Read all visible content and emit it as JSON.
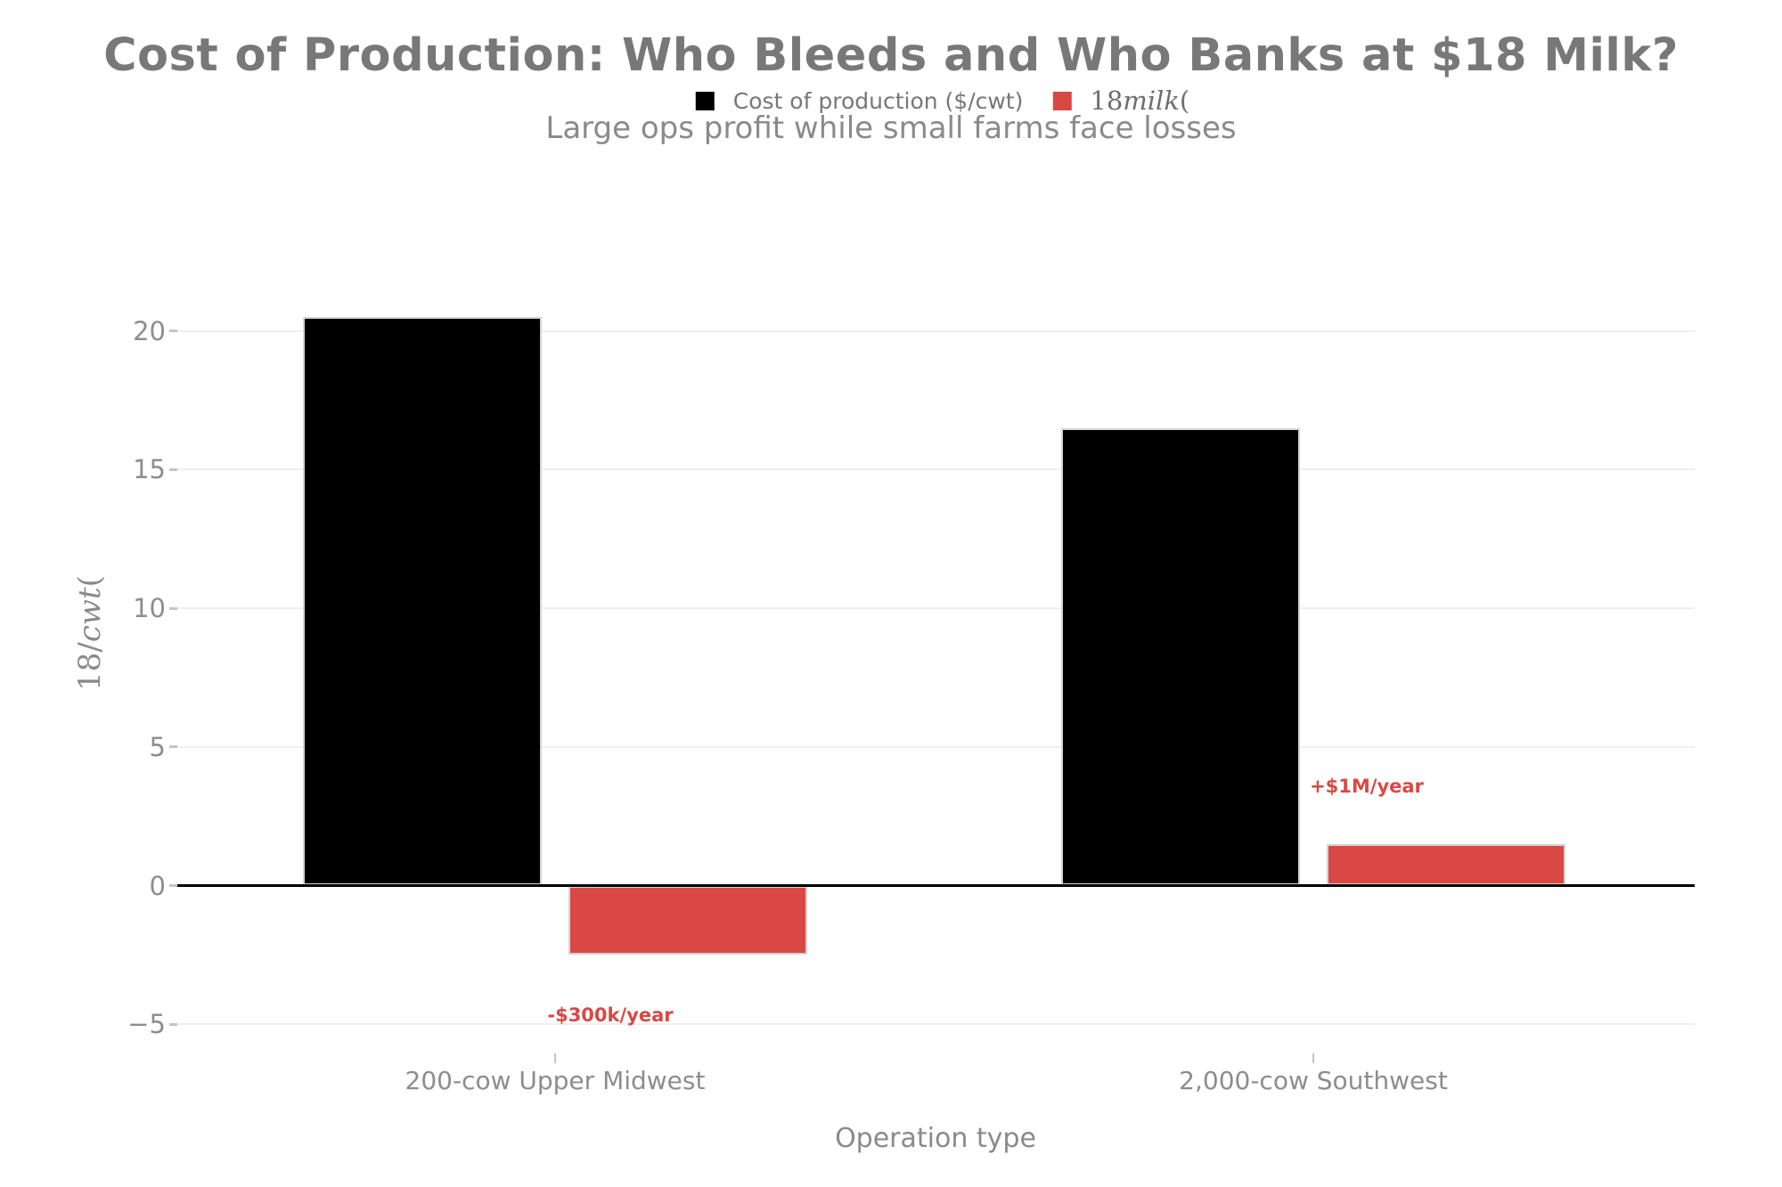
{
  "title": "Cost of Production: Who Bleeds and Who Banks at $18 Milk?",
  "subtitle": "Large ops profit while small farms face losses",
  "colors": {
    "cost_bar": "#000000",
    "milk_bar": "#d94845",
    "annotation": "#d94845",
    "title_gray": "#787878",
    "tick_gray": "#8d8d8d",
    "gridline": "#efefef"
  },
  "legend": {
    "items": [
      {
        "label": "Cost of production ($/cwt)",
        "swatch_color": "#000000"
      },
      {
        "label_prefix": "18",
        "label_italic": "milk",
        "label_suffix": "(",
        "swatch_color": "#d94845"
      }
    ]
  },
  "y_axis": {
    "label_prefix": "18/",
    "label_italic": "cwt",
    "label_suffix": "(",
    "tick_labels": [
      "20",
      "15",
      "10",
      "5",
      "0",
      "−5"
    ]
  },
  "x_axis": {
    "label": "Operation type",
    "categories": [
      "200-cow Upper Midwest",
      "2,000-cow Southwest"
    ]
  },
  "chart_data": {
    "type": "bar",
    "categories": [
      "200-cow Upper Midwest",
      "2,000-cow Southwest"
    ],
    "series": [
      {
        "name": "Cost of production ($/cwt)",
        "color": "#000000",
        "values": [
          20.5,
          16.5
        ]
      },
      {
        "name": "18milk(",
        "color": "#d94845",
        "values": [
          -2.5,
          1.5
        ]
      }
    ],
    "annotations": [
      {
        "text": "-$300k/year",
        "category": "200-cow Upper Midwest",
        "series": "18milk(",
        "value": -2.5
      },
      {
        "text": "+$1M/year",
        "category": "2,000-cow Southwest",
        "series": "18milk(",
        "value": 1.5
      }
    ],
    "title": "Cost of Production: Who Bleeds and Who Banks at $18 Milk?",
    "subtitle": "Large ops profit while small farms face losses",
    "xlabel": "Operation type",
    "ylabel": "18/cwt(",
    "yticks": [
      20,
      15,
      10,
      5,
      0,
      -5
    ],
    "ylim": [
      -6.1,
      25.6
    ],
    "grid": "horizontal",
    "legend_position": "top-center",
    "zero_baseline": true
  }
}
